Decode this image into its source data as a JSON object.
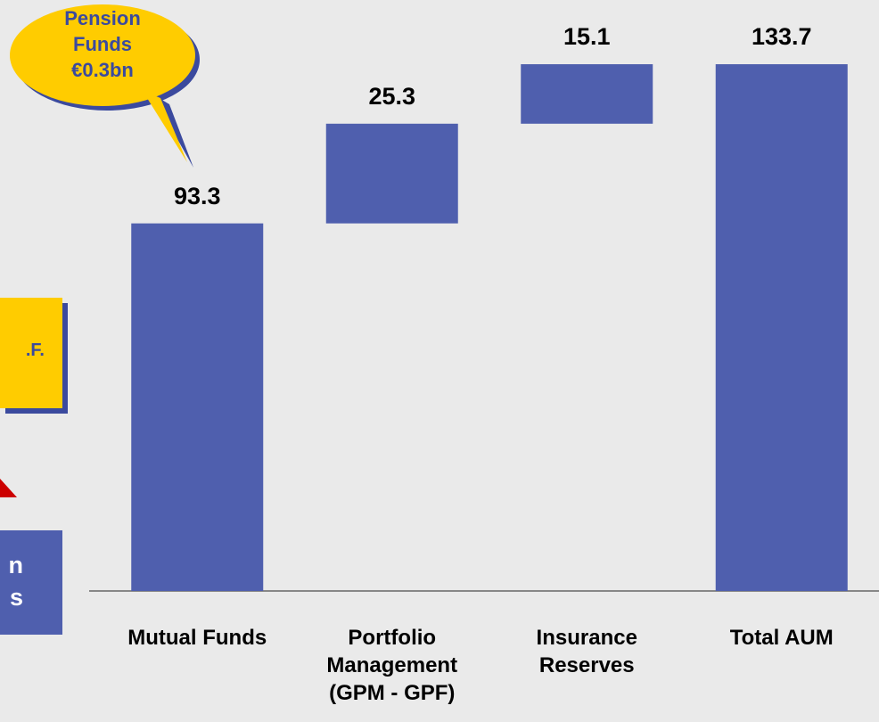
{
  "chart_data": {
    "type": "waterfall",
    "categories": [
      "Mutual Funds",
      "Portfolio\nManagement\n(GPM - GPF)",
      "Insurance\nReserves",
      "Total AUM"
    ],
    "values": [
      93.3,
      25.3,
      15.1,
      133.7
    ],
    "is_total": [
      false,
      false,
      false,
      true
    ],
    "color": "#4f5fae",
    "ylim": [
      0,
      150
    ],
    "callout": "Pension\nFunds\n€0.3bn",
    "side_box_text": ".F.",
    "side_panel_text": "n\ns"
  }
}
